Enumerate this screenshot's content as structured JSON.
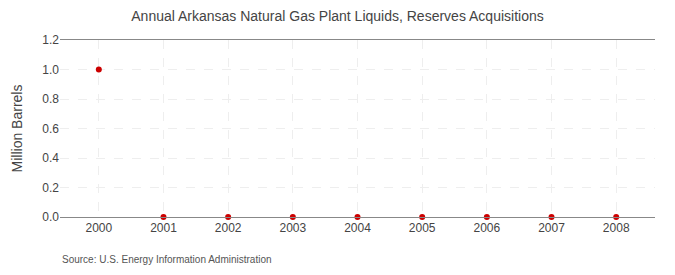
{
  "chart_data": {
    "type": "scatter",
    "title": "Annual Arkansas Natural Gas Plant Liquids, Reserves Acquisitions",
    "ylabel": "Million Barrels",
    "annotations": [
      "Source: U.S. Energy Information Administration"
    ],
    "x": [
      2000,
      2001,
      2002,
      2003,
      2004,
      2005,
      2006,
      2007,
      2008
    ],
    "values": [
      1.0,
      0.0,
      0.0,
      0.0,
      0.0,
      0.0,
      0.0,
      0.0,
      0.0
    ],
    "color": "#cc0000",
    "marker": "circle",
    "xlim": [
      1999.4,
      2008.6
    ],
    "xticks": [
      2000,
      2001,
      2002,
      2003,
      2004,
      2005,
      2006,
      2007,
      2008
    ],
    "ylim": [
      0.0,
      1.2
    ],
    "yticks": [
      {
        "value": 0.0,
        "label": "0.0"
      },
      0.2,
      0.4,
      0.6,
      0.8,
      {
        "value": 1.0,
        "label": "1.0"
      },
      1.2
    ],
    "grid": true
  }
}
